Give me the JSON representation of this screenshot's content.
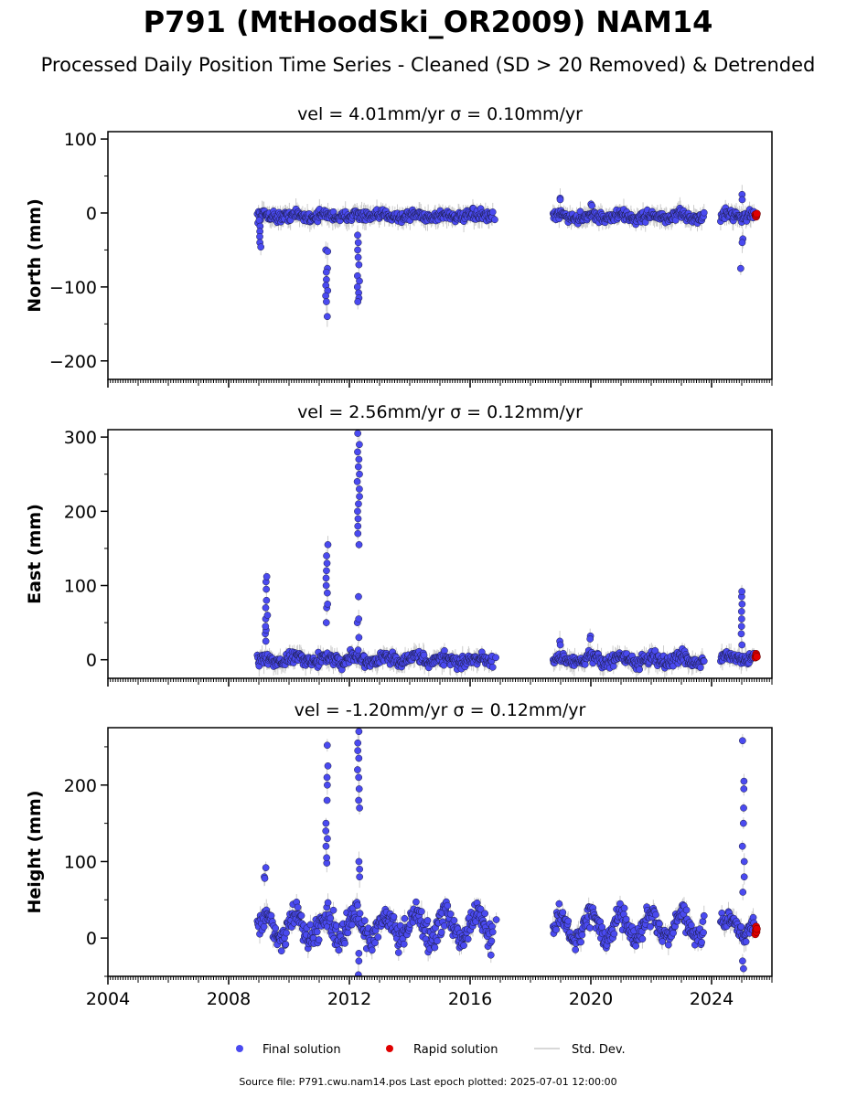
{
  "title": "P791 (MtHoodSki_OR2009) NAM14",
  "subtitle": "Processed Daily Position Time Series - Cleaned (SD > 20 Removed) & Detrended",
  "footer": "Source file: P791.cwu.nam14.pos  Last epoch plotted: 2025-07-01 12:00:00",
  "colors": {
    "final": "#4a4af0",
    "rapid": "#e00000",
    "stddev": "#cccccc",
    "edge": "#1a1a40"
  },
  "legend": {
    "final": "Final solution",
    "rapid": "Rapid solution",
    "stddev": "Std. Dev."
  },
  "chart_data": [
    {
      "type": "scatter",
      "panel_title": "vel = 4.01mm/yr   σ = 0.10mm/yr",
      "ylabel": "North (mm)",
      "xlim": [
        2004,
        2026
      ],
      "ylim": [
        -225,
        110
      ],
      "yticks": [
        100,
        0,
        -100,
        -200
      ],
      "xticks": [
        2004,
        2008,
        2012,
        2016,
        2020,
        2024
      ],
      "segments": [
        {
          "start": 2008.95,
          "end": 2016.75,
          "base": -4,
          "spread": 5,
          "amp": 2
        },
        {
          "start": 2018.75,
          "end": 2023.75,
          "base": -5,
          "spread": 5,
          "amp": 3
        },
        {
          "start": 2024.3,
          "end": 2025.4,
          "base": -3,
          "spread": 5,
          "amp": 2
        }
      ],
      "spikes": [
        {
          "x": 2009.05,
          "values": [
            -10,
            -18,
            -25,
            -32,
            -40,
            -46
          ]
        },
        {
          "x": 2011.25,
          "values": [
            -50,
            -52,
            -75,
            -80,
            -90,
            -98,
            -105,
            -112,
            -120,
            -140
          ]
        },
        {
          "x": 2012.3,
          "values": [
            -30,
            -40,
            -50,
            -60,
            -70,
            -85,
            -92,
            -100,
            -108,
            -115,
            -120
          ]
        },
        {
          "x": 2016.85,
          "values": [
            -9
          ]
        },
        {
          "x": 2019.0,
          "values": [
            20,
            18
          ]
        },
        {
          "x": 2020.0,
          "values": [
            12,
            10
          ]
        },
        {
          "x": 2025.0,
          "values": [
            25,
            18,
            -35,
            -40,
            -75
          ]
        }
      ],
      "rapid": {
        "start": 2025.45,
        "end": 2025.5,
        "values": [
          -2,
          -4,
          -5,
          -3,
          -1
        ]
      }
    },
    {
      "type": "scatter",
      "panel_title": "vel = 2.56mm/yr   σ = 0.12mm/yr",
      "ylabel": "East (mm)",
      "xlim": [
        2004,
        2026
      ],
      "ylim": [
        -25,
        310
      ],
      "yticks": [
        300,
        200,
        100,
        0
      ],
      "xticks": [
        2004,
        2008,
        2012,
        2016,
        2020,
        2024
      ],
      "segments": [
        {
          "start": 2008.95,
          "end": 2016.75,
          "base": 0,
          "spread": 6,
          "amp": 4
        },
        {
          "start": 2018.75,
          "end": 2023.75,
          "base": 0,
          "spread": 6,
          "amp": 4
        },
        {
          "start": 2024.3,
          "end": 2025.4,
          "base": 2,
          "spread": 5,
          "amp": 3
        }
      ],
      "spikes": [
        {
          "x": 2009.25,
          "values": [
            25,
            35,
            40,
            45,
            55,
            60,
            70,
            80,
            95,
            105,
            112
          ]
        },
        {
          "x": 2011.25,
          "values": [
            50,
            70,
            75,
            90,
            100,
            110,
            120,
            130,
            140,
            155
          ]
        },
        {
          "x": 2012.3,
          "values": [
            30,
            50,
            55,
            85,
            155,
            170,
            180,
            190,
            200,
            210,
            220,
            230,
            240,
            250,
            260,
            270,
            280,
            290,
            305
          ]
        },
        {
          "x": 2016.85,
          "values": [
            3
          ]
        },
        {
          "x": 2019.0,
          "values": [
            25,
            20
          ]
        },
        {
          "x": 2020.0,
          "values": [
            32,
            28
          ]
        },
        {
          "x": 2025.0,
          "values": [
            20,
            35,
            45,
            55,
            65,
            75,
            85,
            92
          ]
        }
      ],
      "rapid": {
        "start": 2025.45,
        "end": 2025.5,
        "values": [
          3,
          5,
          8,
          6,
          4
        ]
      }
    },
    {
      "type": "scatter",
      "panel_title": "vel = -1.20mm/yr   σ = 0.12mm/yr",
      "ylabel": "Height (mm)",
      "xlim": [
        2004,
        2026
      ],
      "ylim": [
        -50,
        275
      ],
      "yticks": [
        200,
        100,
        0
      ],
      "xticks": [
        2004,
        2008,
        2012,
        2016,
        2020,
        2024
      ],
      "segments": [
        {
          "start": 2008.95,
          "end": 2016.75,
          "base": 15,
          "spread": 12,
          "amp": 15
        },
        {
          "start": 2018.75,
          "end": 2023.75,
          "base": 15,
          "spread": 10,
          "amp": 15
        },
        {
          "start": 2024.3,
          "end": 2025.4,
          "base": 15,
          "spread": 10,
          "amp": 10
        }
      ],
      "spikes": [
        {
          "x": 2009.2,
          "values": [
            80,
            92,
            78
          ]
        },
        {
          "x": 2011.25,
          "values": [
            98,
            105,
            120,
            130,
            140,
            150,
            180,
            200,
            210,
            225,
            252
          ]
        },
        {
          "x": 2012.3,
          "values": [
            -20,
            -30,
            -48,
            80,
            90,
            100,
            170,
            180,
            195,
            210,
            220,
            235,
            245,
            255,
            270
          ]
        },
        {
          "x": 2016.85,
          "values": [
            24
          ]
        },
        {
          "x": 2025.05,
          "values": [
            -40,
            -30,
            60,
            80,
            100,
            120,
            150,
            170,
            195,
            205,
            258
          ]
        }
      ],
      "rapid": {
        "start": 2025.45,
        "end": 2025.5,
        "values": [
          5,
          10,
          15,
          8,
          12
        ]
      }
    }
  ]
}
